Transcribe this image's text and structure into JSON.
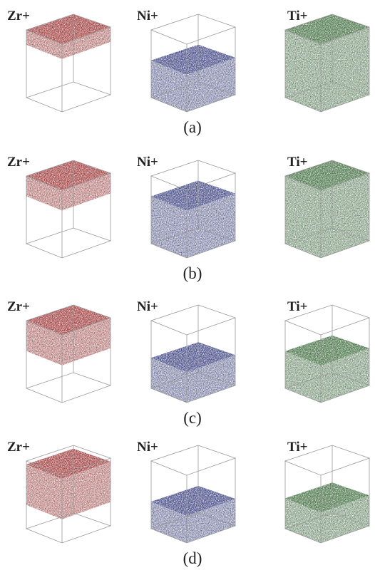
{
  "figure": {
    "rows": [
      {
        "caption": "(a)",
        "panels": [
          {
            "label": "Zr+"
          },
          {
            "label": "Ni+"
          },
          {
            "label": "Ti+"
          }
        ]
      },
      {
        "caption": "(b)",
        "panels": [
          {
            "label": "Zr+"
          },
          {
            "label": "Ni+"
          },
          {
            "label": "Ti+"
          }
        ]
      },
      {
        "caption": "(c)",
        "panels": [
          {
            "label": "Zr+"
          },
          {
            "label": "Ni+"
          },
          {
            "label": "Ti+"
          }
        ]
      },
      {
        "caption": "(d)",
        "panels": [
          {
            "label": "Zr+"
          },
          {
            "label": "Ni+"
          },
          {
            "label": "Ti+"
          }
        ]
      }
    ]
  }
}
